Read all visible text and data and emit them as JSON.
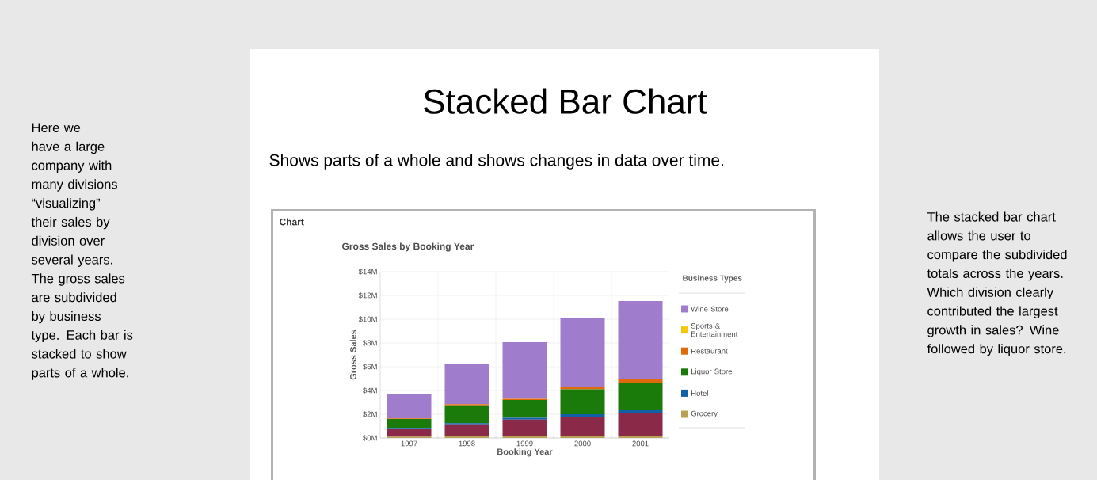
{
  "chart_data": {
    "type": "bar",
    "stacked": true,
    "title": "Stacked Bar Chart",
    "subtitle": "Shows parts of a whole and shows changes in data over time.",
    "annotations": [
      "Chart",
      "Gross Sales by Booking Year",
      "Here we have a large company with many divisions “visualizing” their sales by division over several years. The gross sales are subdivided by business type. Each bar is stacked to show parts of a whole.",
      "The stacked bar chart allows the user to compare the subdivided totals across the years. Which division clearly contributed the largest growth in sales? Wine followed by liquor store."
    ],
    "xlabel": "Booking Year",
    "ylabel": "Gross Sales",
    "legend_title": "Business Types",
    "legend": "right",
    "grid": true,
    "categories": [
      "1997",
      "1998",
      "1999",
      "2000",
      "2001"
    ],
    "ylim": [
      0,
      14
    ],
    "yticks": [
      {
        "value": 0,
        "label": "$0M"
      },
      {
        "value": 2,
        "label": "$2M"
      },
      {
        "value": 4,
        "label": "$4M"
      },
      {
        "value": 6,
        "label": "$6M"
      },
      {
        "value": 8,
        "label": "$8M"
      },
      {
        "value": 10,
        "label": "$10M"
      },
      {
        "value": 12,
        "label": "$12M"
      },
      {
        "value": 14,
        "label": "$14M"
      }
    ],
    "series": [
      {
        "name": "Grocery",
        "color": "#b8a055",
        "values": [
          0.1,
          0.2,
          0.2,
          0.2,
          0.2
        ]
      },
      {
        "color": "#8b2a48",
        "values": [
          0.7,
          0.95,
          1.35,
          1.6,
          1.9
        ]
      },
      {
        "name": "Hotel",
        "color": "#1060a8",
        "values": [
          0.05,
          0.1,
          0.15,
          0.2,
          0.25
        ]
      },
      {
        "name": "Liquor Store",
        "color": "#1a7a0a",
        "values": [
          0.75,
          1.5,
          1.5,
          2.1,
          2.3
        ]
      },
      {
        "name": "Restaurant",
        "color": "#e06a0a",
        "values": [
          0.05,
          0.1,
          0.1,
          0.2,
          0.3
        ]
      },
      {
        "name": "Sports & Entertainment",
        "color": "#f5c800",
        "values": [
          null,
          null,
          null,
          null,
          null
        ]
      },
      {
        "name": "Wine Store",
        "color": "#a07dcc",
        "values": [
          2.08,
          3.42,
          4.77,
          5.77,
          6.58
        ]
      }
    ]
  }
}
